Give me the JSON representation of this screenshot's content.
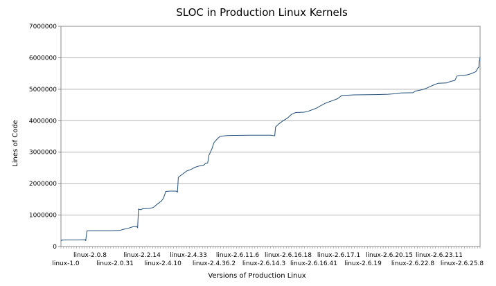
{
  "chart_data": {
    "type": "line",
    "title": "SLOC in Production Linux Kernels",
    "xlabel": "Versions of Production Linux",
    "ylabel": "Lines of Code",
    "ylim": [
      0,
      7000000
    ],
    "yticks": [
      0,
      1000000,
      2000000,
      3000000,
      4000000,
      5000000,
      6000000,
      7000000
    ],
    "ytick_labels": [
      "0",
      "1000000",
      "2000000",
      "3000000",
      "4000000",
      "5000000",
      "6000000",
      "7000000"
    ],
    "grid": "horizontal",
    "legend": "none",
    "line_color": "#1f4e79",
    "xtick_labels_upper": [
      "linux-2.0.8",
      "linux-2.2.14",
      "linux-2.4.33",
      "linux-2.6.11.6",
      "linux-2.6.16.18",
      "linux-2.6.17.1",
      "linux-2.6.20.15",
      "linux-2.6.23.11"
    ],
    "xtick_labels_lower": [
      "linux-1.0",
      "linux-2.0.31",
      "linux-2.4.10",
      "linux-2.4.36.2",
      "linux-2.6.14.3",
      "linux-2.6.16.41",
      "linux-2.6.19",
      "linux-2.6.22.8",
      "linux-2.6.25.8"
    ],
    "x_range": [
      0,
      100
    ],
    "series": [
      {
        "values": [
          [
            0,
            176000
          ],
          [
            0.1,
            200000
          ],
          [
            1,
            210000
          ],
          [
            3.5,
            210000
          ],
          [
            5.8,
            215000
          ],
          [
            5.9,
            180000
          ],
          [
            6.2,
            500000
          ],
          [
            7,
            505000
          ],
          [
            12,
            505000
          ],
          [
            14,
            510000
          ],
          [
            15,
            550000
          ],
          [
            16,
            580000
          ],
          [
            17,
            620000
          ],
          [
            18,
            640000
          ],
          [
            18.3,
            600000
          ],
          [
            18.5,
            1190000
          ],
          [
            19,
            1170000
          ],
          [
            19.5,
            1200000
          ],
          [
            21,
            1210000
          ],
          [
            22,
            1240000
          ],
          [
            23,
            1350000
          ],
          [
            24,
            1450000
          ],
          [
            24.5,
            1550000
          ],
          [
            25,
            1750000
          ],
          [
            26,
            1760000
          ],
          [
            27.5,
            1760000
          ],
          [
            27.8,
            1730000
          ],
          [
            28,
            2200000
          ],
          [
            29,
            2300000
          ],
          [
            30,
            2400000
          ],
          [
            31,
            2450000
          ],
          [
            32,
            2520000
          ],
          [
            33,
            2560000
          ],
          [
            34,
            2580000
          ],
          [
            34.5,
            2640000
          ],
          [
            35,
            2660000
          ],
          [
            35.3,
            2900000
          ],
          [
            36,
            3100000
          ],
          [
            36.5,
            3300000
          ],
          [
            37,
            3380000
          ],
          [
            37.5,
            3450000
          ],
          [
            38,
            3500000
          ],
          [
            39,
            3520000
          ],
          [
            40,
            3530000
          ],
          [
            45,
            3540000
          ],
          [
            50,
            3540000
          ],
          [
            51,
            3520000
          ],
          [
            51.2,
            3800000
          ],
          [
            52,
            3900000
          ],
          [
            53,
            4000000
          ],
          [
            54,
            4080000
          ],
          [
            55,
            4200000
          ],
          [
            56,
            4260000
          ],
          [
            58,
            4270000
          ],
          [
            59,
            4300000
          ],
          [
            60,
            4350000
          ],
          [
            61,
            4400000
          ],
          [
            62,
            4480000
          ],
          [
            63,
            4550000
          ],
          [
            64,
            4600000
          ],
          [
            65,
            4650000
          ],
          [
            66,
            4700000
          ],
          [
            66.5,
            4750000
          ],
          [
            67,
            4800000
          ],
          [
            70,
            4820000
          ],
          [
            75,
            4830000
          ],
          [
            78,
            4840000
          ],
          [
            80,
            4860000
          ],
          [
            81,
            4880000
          ],
          [
            84,
            4890000
          ],
          [
            84.5,
            4940000
          ],
          [
            86,
            4980000
          ],
          [
            87,
            5020000
          ],
          [
            88,
            5080000
          ],
          [
            89,
            5140000
          ],
          [
            90,
            5190000
          ],
          [
            92,
            5200000
          ],
          [
            93,
            5250000
          ],
          [
            94,
            5280000
          ],
          [
            94.5,
            5420000
          ],
          [
            96,
            5440000
          ],
          [
            97,
            5460000
          ],
          [
            98,
            5500000
          ],
          [
            99,
            5560000
          ],
          [
            99.5,
            5680000
          ],
          [
            99.7,
            5700000
          ],
          [
            99.8,
            5900000
          ],
          [
            99.9,
            5920000
          ],
          [
            100,
            6020000
          ]
        ]
      }
    ]
  }
}
